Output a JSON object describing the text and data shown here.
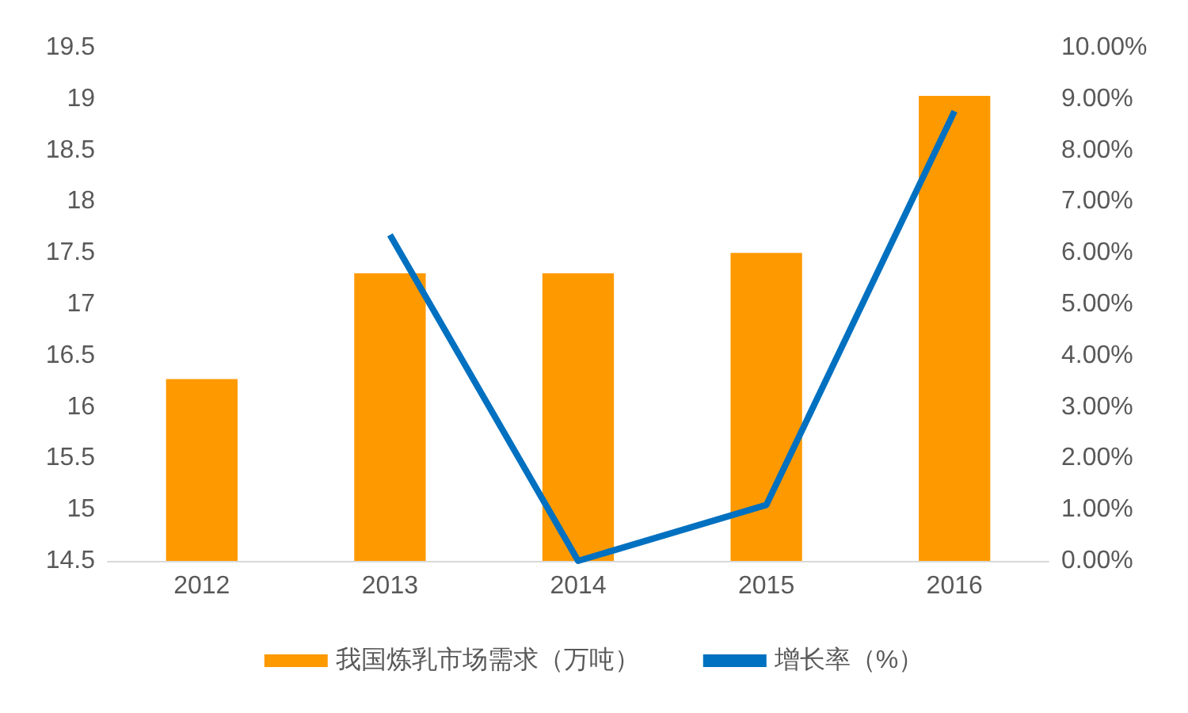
{
  "chart_data": {
    "type": "bar",
    "categories": [
      "2012",
      "2013",
      "2014",
      "2015",
      "2016"
    ],
    "series": [
      {
        "name": "我国炼乳市场需求（万吨）",
        "color": "#ff9900",
        "values": [
          16.27,
          17.3,
          17.3,
          17.5,
          19.03
        ]
      },
      {
        "name": "增长率（%）",
        "type": "line",
        "axis": "y2",
        "color": "#0070c0",
        "values": [
          null,
          6.35,
          0.0,
          1.09,
          8.76
        ]
      }
    ],
    "ylim": [
      14.5,
      19.5
    ],
    "yticks": [
      14.5,
      15,
      15.5,
      16,
      16.5,
      17,
      17.5,
      18,
      18.5,
      19,
      19.5
    ],
    "y2lim": [
      0,
      10
    ],
    "y2ticks": [
      {
        "value": 0,
        "label": "0.00%"
      },
      {
        "value": 1,
        "label": "1.00%"
      },
      {
        "value": 2,
        "label": "2.00%"
      },
      {
        "value": 3,
        "label": "3.00%"
      },
      {
        "value": 4,
        "label": "4.00%"
      },
      {
        "value": 5,
        "label": "5.00%"
      },
      {
        "value": 6,
        "label": "6.00%"
      },
      {
        "value": 7,
        "label": "7.00%"
      },
      {
        "value": 8,
        "label": "8.00%"
      },
      {
        "value": 9,
        "label": "9.00%"
      },
      {
        "value": 10,
        "label": "10.00%"
      }
    ],
    "grid": false,
    "legend": "bottom",
    "marker": "none"
  }
}
